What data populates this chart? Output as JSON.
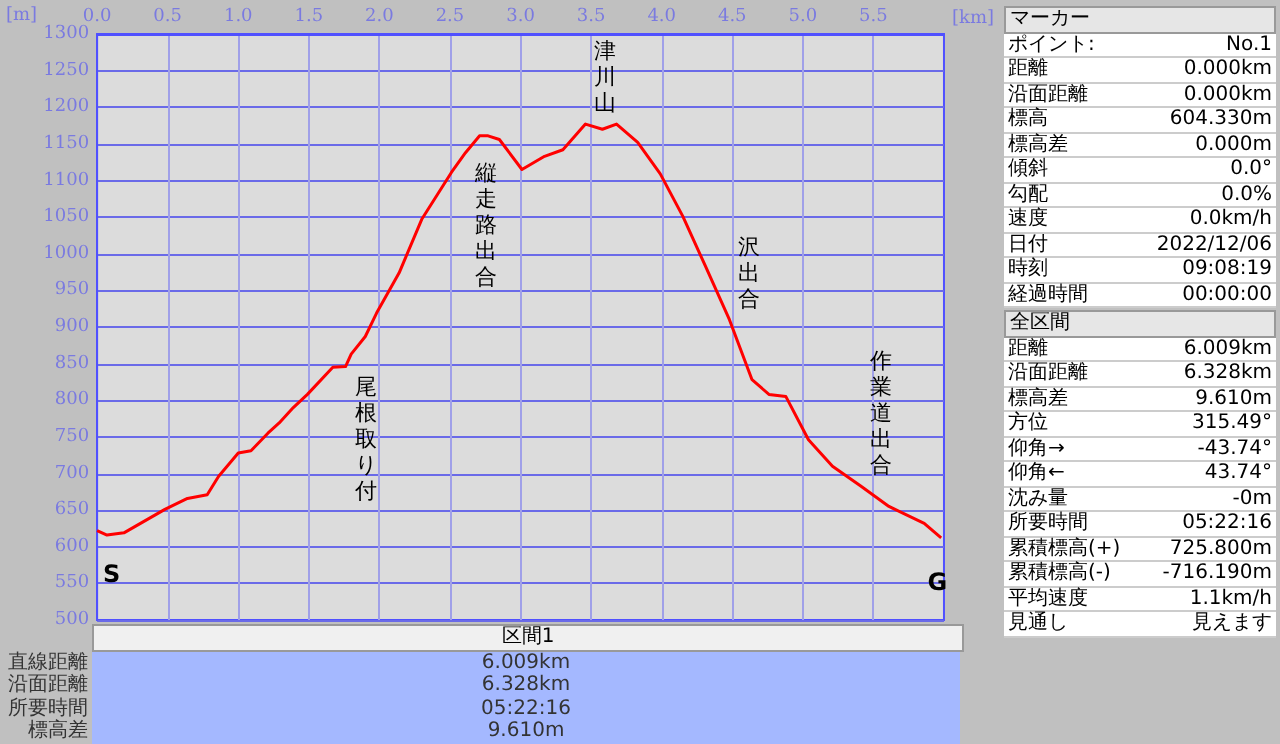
{
  "chart_data": {
    "type": "line",
    "xlabel": "[km]",
    "ylabel": "[m]",
    "xlim": [
      0,
      6.0
    ],
    "xticks": [
      {
        "value": 0,
        "label": "0.0"
      },
      {
        "value": 0.5,
        "label": "0.5"
      },
      {
        "value": 1,
        "label": "1.0"
      },
      {
        "value": 1.5,
        "label": "1.5"
      },
      {
        "value": 2,
        "label": "2.0"
      },
      {
        "value": 2.5,
        "label": "2.5"
      },
      {
        "value": 3,
        "label": "3.0"
      },
      {
        "value": 3.5,
        "label": "3.5"
      },
      {
        "value": 4,
        "label": "4.0"
      },
      {
        "value": 4.5,
        "label": "4.5"
      },
      {
        "value": 5,
        "label": "5.0"
      },
      {
        "value": 5.5,
        "label": "5.5"
      }
    ],
    "ylim": [
      500,
      1300
    ],
    "yticks": [
      500,
      550,
      600,
      650,
      700,
      750,
      800,
      850,
      900,
      950,
      1000,
      1050,
      1100,
      1150,
      1200,
      1250,
      1300
    ],
    "grid": true,
    "marker": "none",
    "line_style": "solid",
    "series": [
      {
        "color": "#ff0000",
        "x": [
          0,
          0.07,
          0.19,
          0.48,
          0.64,
          0.78,
          0.86,
          1.0,
          1.09,
          1.21,
          1.29,
          1.39,
          1.49,
          1.67,
          1.76,
          1.8,
          1.9,
          1.98,
          2.14,
          2.3,
          2.51,
          2.61,
          2.71,
          2.77,
          2.85,
          3.01,
          3.17,
          3.3,
          3.46,
          3.58,
          3.68,
          3.83,
          3.99,
          4.15,
          4.31,
          4.48,
          4.64,
          4.76,
          4.88,
          5.04,
          5.21,
          5.41,
          5.61,
          5.86,
          5.98
        ],
        "values": [
          622,
          616,
          619,
          651,
          666,
          671,
          696,
          728,
          731,
          755,
          769,
          790,
          808,
          845,
          846,
          863,
          887,
          919,
          974,
          1047,
          1111,
          1138,
          1161,
          1161,
          1156,
          1115,
          1133,
          1142,
          1177,
          1170,
          1177,
          1152,
          1109,
          1051,
          983,
          910,
          828,
          808,
          805,
          746,
          710,
          683,
          655,
          632,
          612
        ]
      }
    ],
    "annotations": [
      {
        "text": "S",
        "x": 0,
        "y": 622
      },
      {
        "text": "G",
        "x": 5.98,
        "y": 612
      },
      {
        "text": "尾根取り付",
        "x": 1.76,
        "y": 846
      },
      {
        "text": "縦走路出合",
        "x": 2.61,
        "y": 1138
      },
      {
        "text": "津川山",
        "x": 3.46,
        "y": 1177
      },
      {
        "text": "沢出合",
        "x": 4.48,
        "y": 910
      },
      {
        "text": "作業道出合",
        "x": 5.41,
        "y": 683
      },
      "マーカー",
      "ポイント: No.1",
      "距離 0.000km",
      "沿面距離 0.000km",
      "標高 604.330m",
      "標高差 0.000m",
      "傾斜 0.0°",
      "勾配 0.0%",
      "速度 0.0km/h",
      "日付 2022/12/06",
      "時刻 09:08:19",
      "経過時間 00:00:00",
      "全区間",
      "距離 6.009km",
      "沿面距離 6.328km",
      "標高差 9.610m",
      "方位 315.49°",
      "仰角→ -43.74°",
      "仰角← 43.74°",
      "沈み量 -0m",
      "所要時間 05:22:16",
      "累積標高(+) 725.800m",
      "累積標高(-) -716.190m",
      "平均速度 1.1km/h",
      "見通し 見えます",
      "区間1",
      "直線距離 6.009km",
      "沿面距離 6.328km",
      "所要時間 05:22:16",
      "標高差 9.610m"
    ]
  }
}
